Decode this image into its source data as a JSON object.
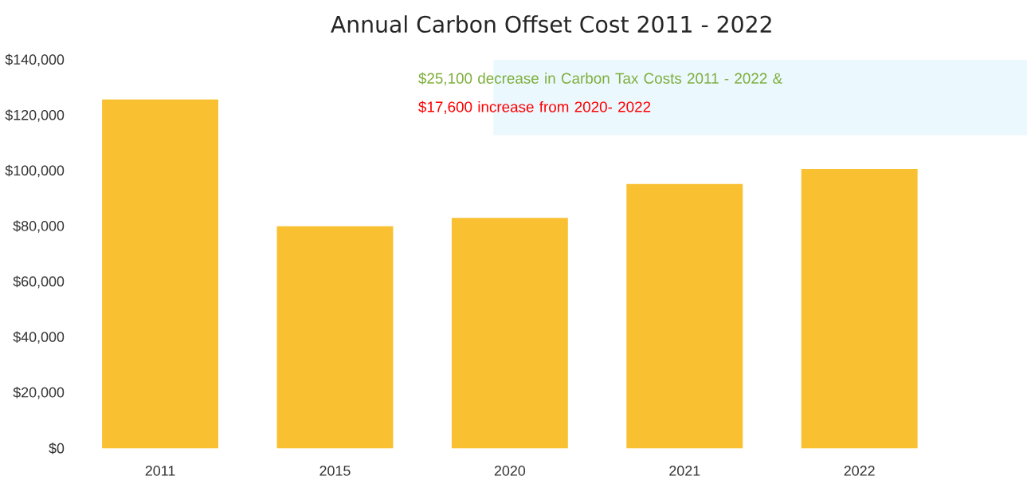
{
  "chart_data": {
    "type": "bar",
    "title": "Annual Carbon Offset Cost 2011 - 2022",
    "categories": [
      "2011",
      "2015",
      "2020",
      "2021",
      "2022"
    ],
    "values": [
      125800,
      80100,
      83100,
      95300,
      100700
    ],
    "color": "#f9c032",
    "ylim": [
      0,
      140000
    ],
    "yticks": [
      {
        "value": 0,
        "label": "$0"
      },
      {
        "value": 20000,
        "label": "$20,000"
      },
      {
        "value": 40000,
        "label": "$40,000"
      },
      {
        "value": 60000,
        "label": "$60,000"
      },
      {
        "value": 80000,
        "label": "$80,000"
      },
      {
        "value": 100000,
        "label": "$100,000"
      },
      {
        "value": 120000,
        "label": "$120,000"
      },
      {
        "value": 140000,
        "label": "$140,000"
      }
    ],
    "annotations": [
      "$25,100 decrease in Carbon Tax Costs 2011 - 2022 &",
      "$17,600 increase from 2020- 2022"
    ]
  }
}
